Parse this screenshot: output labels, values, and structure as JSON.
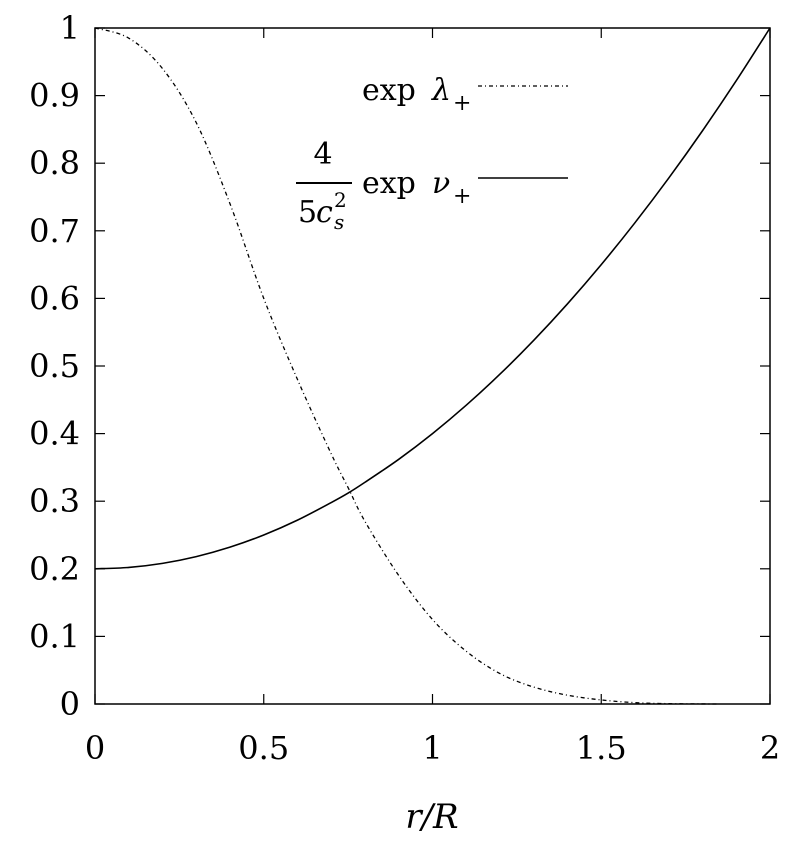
{
  "chart_data": {
    "type": "line",
    "xlabel": "r/R",
    "ylabel": "",
    "xlim": [
      0,
      2
    ],
    "ylim": [
      0,
      1
    ],
    "x_ticks": [
      0,
      0.5,
      1,
      1.5,
      2
    ],
    "x_tick_labels": [
      "0",
      "0.5",
      "1",
      "1.5",
      "2"
    ],
    "y_ticks": [
      0,
      0.1,
      0.2,
      0.3,
      0.4,
      0.5,
      0.6,
      0.7,
      0.8,
      0.9,
      1
    ],
    "y_tick_labels": [
      "0",
      "0.1",
      "0.2",
      "0.3",
      "0.4",
      "0.5",
      "0.6",
      "0.7",
      "0.8",
      "0.9",
      "1"
    ],
    "grid": false,
    "legend_position": "top-right",
    "legend": {
      "lambda_entry": {
        "prefix": "exp",
        "symbol": "λ",
        "subscript": "+"
      },
      "nu_entry": {
        "numerator": "4",
        "denominator_coef": "5",
        "denominator_var": "c",
        "denominator_sup": "2",
        "denominator_sub": "s",
        "prefix": "exp",
        "symbol": "ν",
        "subscript": "+"
      }
    },
    "series": [
      {
        "legend_key": "lambda_entry",
        "style": "dash-dot",
        "color": "#000000",
        "x": [
          0,
          0.1,
          0.2,
          0.3,
          0.4,
          0.5,
          0.6,
          0.7,
          0.75,
          0.8,
          0.9,
          1.0,
          1.1,
          1.2,
          1.3,
          1.4,
          1.5,
          1.6,
          1.7,
          1.8,
          1.85
        ],
        "y": [
          1.0,
          0.985,
          0.94,
          0.86,
          0.74,
          0.6,
          0.48,
          0.37,
          0.32,
          0.27,
          0.19,
          0.125,
          0.078,
          0.045,
          0.025,
          0.013,
          0.006,
          0.002,
          0.0005,
          0.0001,
          0.0
        ]
      },
      {
        "legend_key": "nu_entry",
        "style": "solid",
        "color": "#000000",
        "x": [
          0,
          0.1,
          0.2,
          0.3,
          0.4,
          0.5,
          0.6,
          0.7,
          0.75,
          0.8,
          0.9,
          1.0,
          1.1,
          1.2,
          1.3,
          1.4,
          1.5,
          1.6,
          1.7,
          1.8,
          1.9,
          2.0
        ],
        "y": [
          0.2,
          0.202,
          0.208,
          0.218,
          0.232,
          0.25,
          0.272,
          0.298,
          0.312,
          0.328,
          0.362,
          0.4,
          0.442,
          0.488,
          0.538,
          0.592,
          0.65,
          0.712,
          0.778,
          0.848,
          0.922,
          1.0
        ]
      }
    ]
  }
}
